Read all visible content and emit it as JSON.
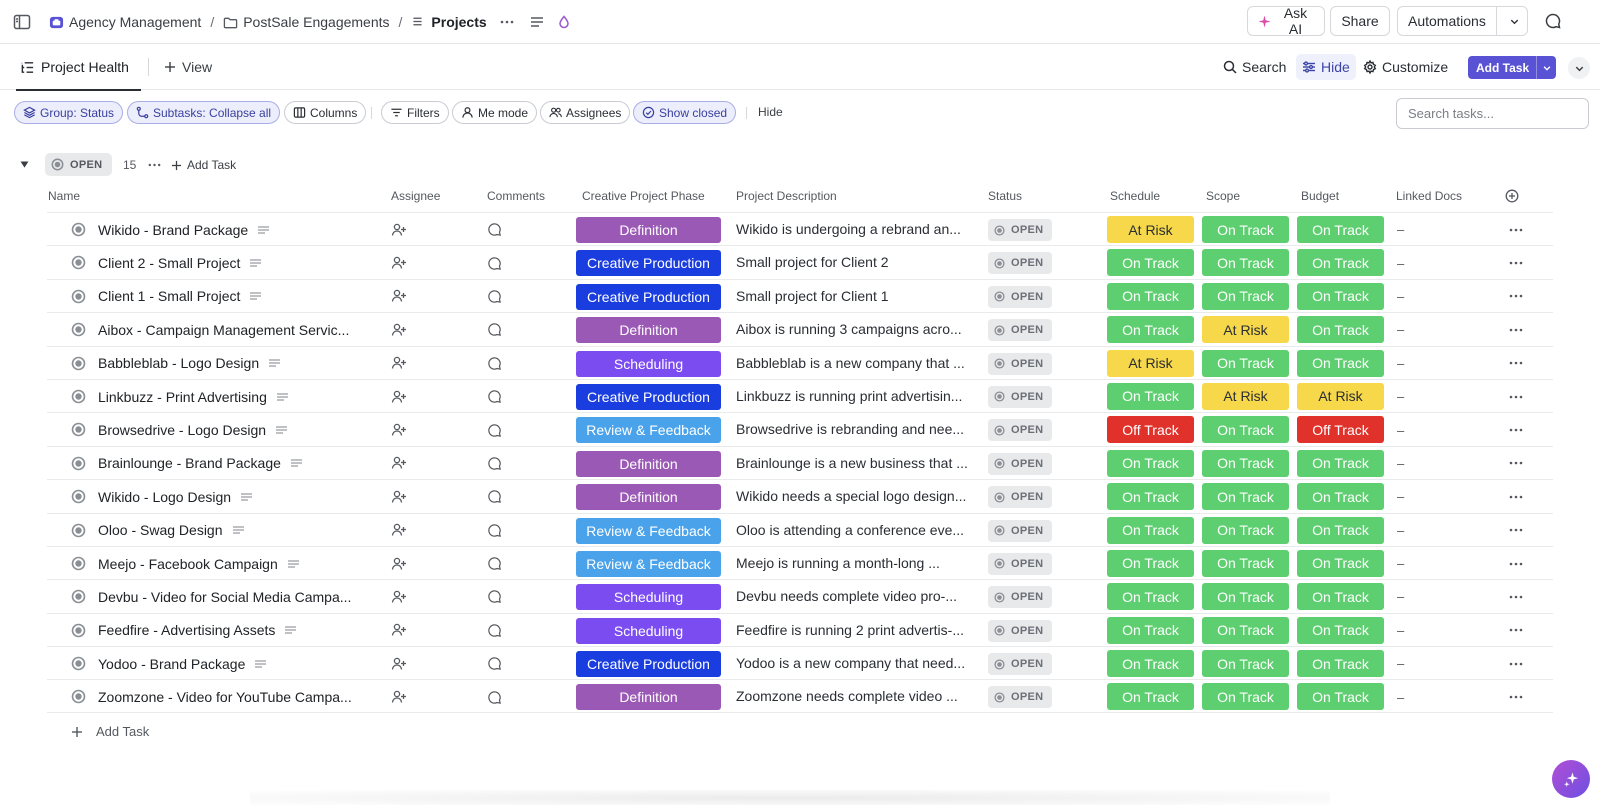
{
  "breadcrumbs": [
    {
      "label": "Agency Management",
      "icon": "workspace-icon"
    },
    {
      "label": "PostSale Engagements",
      "icon": "folder-icon"
    },
    {
      "label": "Projects",
      "icon": "list-icon"
    }
  ],
  "topbar": {
    "ask_ai": "Ask AI",
    "share": "Share",
    "automations": "Automations"
  },
  "viewbar": {
    "active_view": "Project Health",
    "add_view": "View",
    "search": "Search",
    "hide": "Hide",
    "customize": "Customize",
    "add_task": "Add Task"
  },
  "filters": {
    "group": "Group: Status",
    "subtasks": "Subtasks: Collapse all",
    "columns": "Columns",
    "filters": "Filters",
    "me_mode": "Me mode",
    "assignees": "Assignees",
    "show_closed": "Show closed",
    "hide": "Hide",
    "search_placeholder": "Search tasks..."
  },
  "group": {
    "status": "OPEN",
    "count": "15",
    "add_task": "Add Task"
  },
  "columns": {
    "name": "Name",
    "assignee": "Assignee",
    "comments": "Comments",
    "phase": "Creative Project Phase",
    "description": "Project Description",
    "status": "Status",
    "schedule": "Schedule",
    "scope": "Scope",
    "budget": "Budget",
    "linked_docs": "Linked Docs"
  },
  "phase_colors": {
    "Definition": "#9b59b6",
    "Creative Production": "#1a3de0",
    "Scheduling": "#7b4cf0",
    "Review & Feedback": "#4aa3ea"
  },
  "health_colors": {
    "On Track": {
      "bg": "#5ecf70",
      "fg": "#ffffff"
    },
    "At Risk": {
      "bg": "#f6d84a",
      "fg": "#2a2e34"
    },
    "Off Track": {
      "bg": "#e0322a",
      "fg": "#ffffff"
    }
  },
  "rows": [
    {
      "name": "Wikido - Brand Package",
      "phase": "Definition",
      "description": "Wikido is undergoing a rebrand an...",
      "status": "OPEN",
      "schedule": "At Risk",
      "scope": "On Track",
      "budget": "On Track",
      "docs": "–"
    },
    {
      "name": "Client 2 - Small Project",
      "phase": "Creative Production",
      "description": "Small project for Client 2",
      "status": "OPEN",
      "schedule": "On Track",
      "scope": "On Track",
      "budget": "On Track",
      "docs": "–"
    },
    {
      "name": "Client 1 - Small Project",
      "phase": "Creative Production",
      "description": "Small project for Client 1",
      "status": "OPEN",
      "schedule": "On Track",
      "scope": "On Track",
      "budget": "On Track",
      "docs": "–"
    },
    {
      "name": "Aibox - Campaign Management Servic...",
      "phase": "Definition",
      "description": "Aibox is running 3 campaigns acro...",
      "status": "OPEN",
      "schedule": "On Track",
      "scope": "At Risk",
      "budget": "On Track",
      "docs": "–"
    },
    {
      "name": "Babbleblab - Logo Design",
      "phase": "Scheduling",
      "description": "Babbleblab is a new company that ...",
      "status": "OPEN",
      "schedule": "At Risk",
      "scope": "On Track",
      "budget": "On Track",
      "docs": "–"
    },
    {
      "name": "Linkbuzz - Print Advertising",
      "phase": "Creative Production",
      "description": "Linkbuzz is running print advertisin...",
      "status": "OPEN",
      "schedule": "On Track",
      "scope": "At Risk",
      "budget": "At Risk",
      "docs": "–"
    },
    {
      "name": "Browsedrive - Logo Design",
      "phase": "Review & Feedback",
      "description": "Browsedrive is rebranding and nee...",
      "status": "OPEN",
      "schedule": "Off Track",
      "scope": "On Track",
      "budget": "Off Track",
      "docs": "–"
    },
    {
      "name": "Brainlounge - Brand Package",
      "phase": "Definition",
      "description": "Brainlounge is a new business that ...",
      "status": "OPEN",
      "schedule": "On Track",
      "scope": "On Track",
      "budget": "On Track",
      "docs": "–"
    },
    {
      "name": "Wikido - Logo Design",
      "phase": "Definition",
      "description": "Wikido needs a special logo design...",
      "status": "OPEN",
      "schedule": "On Track",
      "scope": "On Track",
      "budget": "On Track",
      "docs": "–"
    },
    {
      "name": "Oloo - Swag Design",
      "phase": "Review & Feedback",
      "description": "Oloo is attending a conference eve...",
      "status": "OPEN",
      "schedule": "On Track",
      "scope": "On Track",
      "budget": "On Track",
      "docs": "–"
    },
    {
      "name": "Meejo - Facebook Campaign",
      "phase": "Review & Feedback",
      "description": "Meejo is running a month-long ...",
      "status": "OPEN",
      "schedule": "On Track",
      "scope": "On Track",
      "budget": "On Track",
      "docs": "–"
    },
    {
      "name": "Devbu - Video for Social Media Campa...",
      "phase": "Scheduling",
      "description": "Devbu needs complete video pro-...",
      "status": "OPEN",
      "schedule": "On Track",
      "scope": "On Track",
      "budget": "On Track",
      "docs": "–"
    },
    {
      "name": "Feedfire - Advertising Assets",
      "phase": "Scheduling",
      "description": "Feedfire is running 2 print advertis-...",
      "status": "OPEN",
      "schedule": "On Track",
      "scope": "On Track",
      "budget": "On Track",
      "docs": "–"
    },
    {
      "name": "Yodoo - Brand Package",
      "phase": "Creative Production",
      "description": "Yodoo is a new company that need...",
      "status": "OPEN",
      "schedule": "On Track",
      "scope": "On Track",
      "budget": "On Track",
      "docs": "–"
    },
    {
      "name": "Zoomzone - Video for YouTube Campa...",
      "phase": "Definition",
      "description": "Zoomzone needs complete video ...",
      "status": "OPEN",
      "schedule": "On Track",
      "scope": "On Track",
      "budget": "On Track",
      "docs": "–"
    }
  ],
  "footer": {
    "add_task": "Add Task"
  }
}
